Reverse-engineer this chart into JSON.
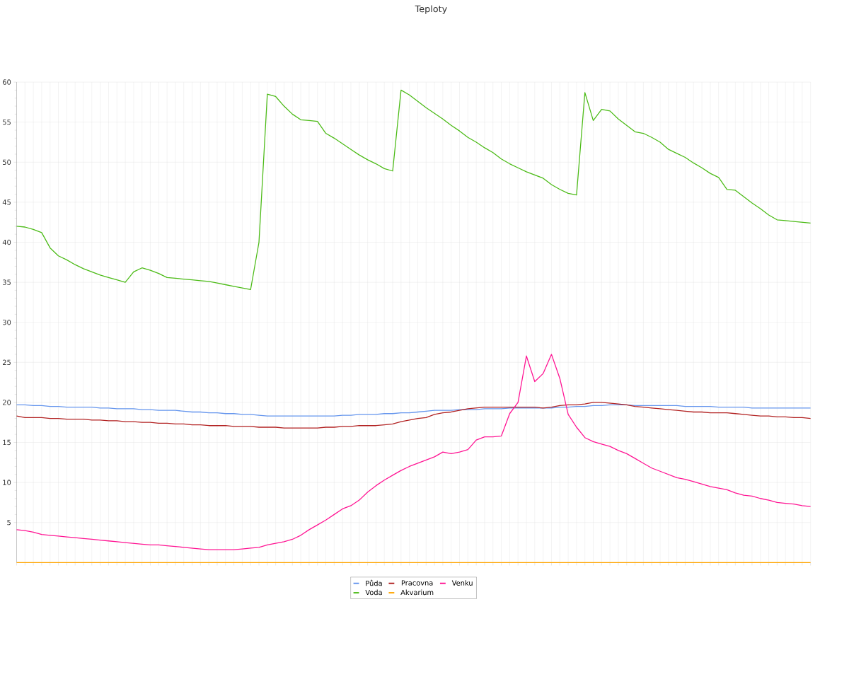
{
  "chart_data": {
    "type": "line",
    "title": "Teploty",
    "categories": [
      null,
      null,
      null,
      null,
      null,
      null,
      null,
      null,
      null,
      null,
      null,
      null,
      null,
      null,
      null,
      null,
      null,
      null,
      null,
      null,
      null,
      null,
      null,
      null,
      null,
      null,
      null,
      null,
      null,
      null,
      null,
      null,
      null,
      null,
      null,
      null,
      null,
      null,
      null,
      null,
      null,
      null,
      null,
      null,
      null,
      null,
      null,
      null,
      null,
      null,
      null,
      null,
      null,
      null,
      null,
      null,
      null,
      null,
      null,
      null,
      null,
      null,
      null,
      null,
      null,
      null,
      null,
      null,
      null,
      null,
      null,
      null,
      null,
      null,
      null,
      null,
      null,
      null,
      null,
      null,
      null,
      null,
      null,
      null,
      null,
      null,
      null,
      null,
      null,
      null,
      null,
      null,
      null,
      null,
      null,
      null
    ],
    "series": [
      {
        "name": "Půda",
        "color": "#6495ed",
        "values": [
          19.7,
          19.7,
          19.6,
          19.6,
          19.5,
          19.5,
          19.4,
          19.4,
          19.4,
          19.4,
          19.3,
          19.3,
          19.2,
          19.2,
          19.2,
          19.1,
          19.1,
          19.0,
          19.0,
          19.0,
          18.9,
          18.8,
          18.8,
          18.7,
          18.7,
          18.6,
          18.6,
          18.5,
          18.5,
          18.4,
          18.3,
          18.3,
          18.3,
          18.3,
          18.3,
          18.3,
          18.3,
          18.3,
          18.3,
          18.4,
          18.4,
          18.5,
          18.5,
          18.5,
          18.6,
          18.6,
          18.7,
          18.7,
          18.8,
          18.9,
          19.0,
          19.0,
          19.0,
          19.1,
          19.1,
          19.1,
          19.2,
          19.2,
          19.2,
          19.3,
          19.3,
          19.3,
          19.3,
          19.3,
          19.3,
          19.4,
          19.4,
          19.5,
          19.5,
          19.6,
          19.6,
          19.7,
          19.7,
          19.7,
          19.6,
          19.6,
          19.6,
          19.6,
          19.6,
          19.6,
          19.5,
          19.5,
          19.5,
          19.5,
          19.4,
          19.4,
          19.4,
          19.4,
          19.3,
          19.3,
          19.3,
          19.3,
          19.3,
          19.3,
          19.3,
          19.3
        ]
      },
      {
        "name": "Voda",
        "color": "#4cbb17",
        "values": [
          42.0,
          41.9,
          41.6,
          41.2,
          39.3,
          38.3,
          37.8,
          37.2,
          36.7,
          36.3,
          35.9,
          35.6,
          35.3,
          35.0,
          36.3,
          36.8,
          36.5,
          36.1,
          35.6,
          35.5,
          35.4,
          35.3,
          35.2,
          35.1,
          34.9,
          34.7,
          34.5,
          34.3,
          34.1,
          40.0,
          58.5,
          58.2,
          57.0,
          56.0,
          55.3,
          55.2,
          55.1,
          53.6,
          53.0,
          52.3,
          51.6,
          50.9,
          50.3,
          49.8,
          49.2,
          48.9,
          59.0,
          58.4,
          57.6,
          56.8,
          56.1,
          55.4,
          54.6,
          53.9,
          53.1,
          52.5,
          51.8,
          51.2,
          50.4,
          49.8,
          49.3,
          48.8,
          48.4,
          48.0,
          47.2,
          46.6,
          46.1,
          45.9,
          58.7,
          55.2,
          56.6,
          56.4,
          55.4,
          54.6,
          53.8,
          53.6,
          53.1,
          52.5,
          51.6,
          51.1,
          50.6,
          49.9,
          49.3,
          48.6,
          48.1,
          46.6,
          46.5,
          45.7,
          44.9,
          44.2,
          43.4,
          42.8,
          42.7,
          42.6,
          42.5,
          42.4
        ]
      },
      {
        "name": "Pracovna",
        "color": "#b22222",
        "values": [
          18.3,
          18.1,
          18.1,
          18.1,
          18.0,
          18.0,
          17.9,
          17.9,
          17.9,
          17.8,
          17.8,
          17.7,
          17.7,
          17.6,
          17.6,
          17.5,
          17.5,
          17.4,
          17.4,
          17.3,
          17.3,
          17.2,
          17.2,
          17.1,
          17.1,
          17.1,
          17.0,
          17.0,
          17.0,
          16.9,
          16.9,
          16.9,
          16.8,
          16.8,
          16.8,
          16.8,
          16.8,
          16.9,
          16.9,
          17.0,
          17.0,
          17.1,
          17.1,
          17.1,
          17.2,
          17.3,
          17.6,
          17.8,
          18.0,
          18.1,
          18.5,
          18.7,
          18.8,
          19.0,
          19.2,
          19.3,
          19.4,
          19.4,
          19.4,
          19.4,
          19.4,
          19.4,
          19.4,
          19.3,
          19.4,
          19.6,
          19.7,
          19.7,
          19.8,
          20.0,
          20.0,
          19.9,
          19.8,
          19.7,
          19.5,
          19.4,
          19.3,
          19.2,
          19.1,
          19.0,
          18.9,
          18.8,
          18.8,
          18.7,
          18.7,
          18.7,
          18.6,
          18.5,
          18.4,
          18.3,
          18.3,
          18.2,
          18.2,
          18.1,
          18.1,
          18.0
        ]
      },
      {
        "name": "Akvarium",
        "color": "#ffa500",
        "values": [
          0,
          0,
          0,
          0,
          0,
          0,
          0,
          0,
          0,
          0,
          0,
          0,
          0,
          0,
          0,
          0,
          0,
          0,
          0,
          0,
          0,
          0,
          0,
          0,
          0,
          0,
          0,
          0,
          0,
          0,
          0,
          0,
          0,
          0,
          0,
          0,
          0,
          0,
          0,
          0,
          0,
          0,
          0,
          0,
          0,
          0,
          0,
          0,
          0,
          0,
          0,
          0,
          0,
          0,
          0,
          0,
          0,
          0,
          0,
          0,
          0,
          0,
          0,
          0,
          0,
          0,
          0,
          0,
          0,
          0,
          0,
          0,
          0,
          0,
          0,
          0,
          0,
          0,
          0,
          0,
          0,
          0,
          0,
          0,
          0,
          0,
          0,
          0,
          0,
          0,
          0,
          0,
          0,
          0,
          0,
          0
        ]
      },
      {
        "name": "Venku",
        "color": "#ff1493",
        "values": [
          4.1,
          4.0,
          3.8,
          3.5,
          3.4,
          3.3,
          3.2,
          3.1,
          3.0,
          2.9,
          2.8,
          2.7,
          2.6,
          2.5,
          2.4,
          2.3,
          2.2,
          2.2,
          2.1,
          2.0,
          1.9,
          1.8,
          1.7,
          1.6,
          1.6,
          1.6,
          1.6,
          1.7,
          1.8,
          1.9,
          2.2,
          2.4,
          2.6,
          2.9,
          3.4,
          4.1,
          4.7,
          5.3,
          6.0,
          6.7,
          7.1,
          7.8,
          8.8,
          9.6,
          10.3,
          10.9,
          11.5,
          12.0,
          12.4,
          12.8,
          13.2,
          13.8,
          13.6,
          13.8,
          14.1,
          15.3,
          15.7,
          15.7,
          15.8,
          18.6,
          20.0,
          25.8,
          22.6,
          23.6,
          26.0,
          23.0,
          18.5,
          16.9,
          15.6,
          15.1,
          14.8,
          14.5,
          14.0,
          13.6,
          13.0,
          12.4,
          11.8,
          11.4,
          11.0,
          10.6,
          10.4,
          10.1,
          9.8,
          9.5,
          9.3,
          9.1,
          8.7,
          8.4,
          8.3,
          8.0,
          7.8,
          7.5,
          7.4,
          7.3,
          7.1,
          7.0
        ]
      }
    ],
    "ylim": [
      0,
      60
    ],
    "yticks": [
      5,
      10,
      15,
      20,
      25,
      30,
      35,
      40,
      45,
      50,
      55,
      60
    ],
    "grid": true,
    "legend": "bottom",
    "marker": "none",
    "line_style": "solid"
  }
}
